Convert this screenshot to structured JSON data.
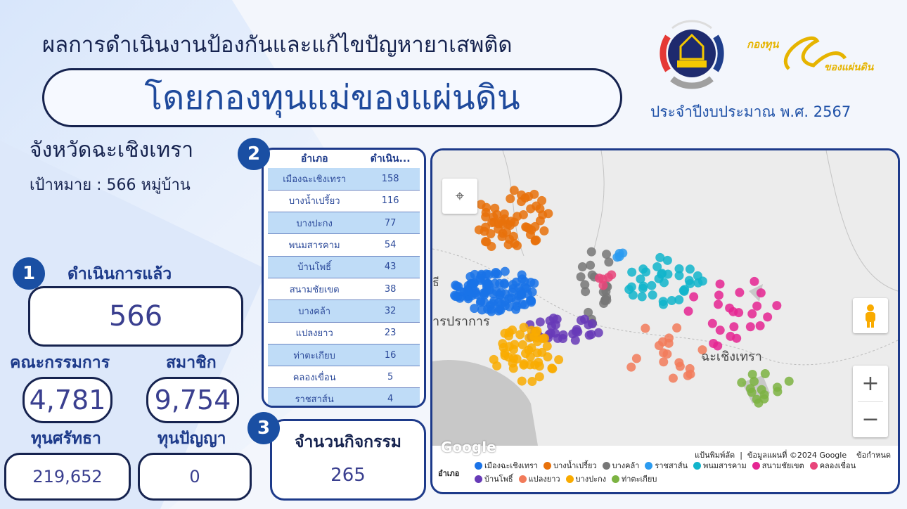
{
  "header": {
    "title": "ผลการดำเนินงานป้องกันและแก้ไขปัญหายาเสพติด",
    "subtitle": "โดยกองทุนแม่ของแผ่นดิน",
    "fiscal_year": "ประจำปีงบประมาณ พ.ศ. 2567",
    "logo2_text": "กองทุนแม่ของแผ่นดิน"
  },
  "province": {
    "name": "จังหวัดฉะเชิงเทรา",
    "target": "เป้าหมาย : 566 หมู่บ้าน"
  },
  "section1": {
    "badge": "1",
    "label": "ดำเนินการแล้ว",
    "value": "566"
  },
  "stats": {
    "committee_label": "คณะกรรมการ",
    "committee_value": "4,781",
    "member_label": "สมาชิก",
    "member_value": "9,754",
    "fund_faith_label": "ทุนศรัทธา",
    "fund_faith_value": "219,652",
    "fund_wisdom_label": "ทุนปัญญา",
    "fund_wisdom_value": "0"
  },
  "section2": {
    "badge": "2",
    "columns": [
      "อำเภอ",
      "ดำเนิน..."
    ],
    "rows": [
      [
        "เมืองฉะเชิงเทรา",
        "158"
      ],
      [
        "บางน้ำเปรี้ยว",
        "116"
      ],
      [
        "บางปะกง",
        "77"
      ],
      [
        "พนมสารคาม",
        "54"
      ],
      [
        "บ้านโพธิ์",
        "43"
      ],
      [
        "สนามชัยเขต",
        "38"
      ],
      [
        "บางคล้า",
        "32"
      ],
      [
        "แปลงยาว",
        "23"
      ],
      [
        "ท่าตะเกียบ",
        "16"
      ],
      [
        "คลองเขื่อน",
        "5"
      ],
      [
        "ราชสาส์น",
        "4"
      ]
    ]
  },
  "section3": {
    "badge": "3",
    "label": "จำนวนกิจกรรม",
    "value": "265"
  },
  "map": {
    "place_labels": [
      "ารปราการ",
      "ฉะเชิงเทรา",
      "ธี"
    ],
    "google": "Google",
    "shortcuts": "แป้นพิมพ์ลัด",
    "copyright": "ข้อมูลแผนที่ ©2024 Google",
    "terms": "ข้อกำหนด",
    "zoom_in": "+",
    "zoom_out": "−",
    "legend_title": "อำเภอ",
    "legend": [
      {
        "name": "เมืองฉะเชิงเทรา",
        "color": "#1a73e8"
      },
      {
        "name": "บางน้ำเปรี้ยว",
        "color": "#e8710a"
      },
      {
        "name": "บางคล้า",
        "color": "#777777"
      },
      {
        "name": "ราชสาส์น",
        "color": "#2b9bf0"
      },
      {
        "name": "พนมสารคาม",
        "color": "#12b5cb"
      },
      {
        "name": "สนามชัยเขต",
        "color": "#e52592"
      },
      {
        "name": "คลองเขื่อน",
        "color": "#e8457a"
      },
      {
        "name": "บ้านโพธิ์",
        "color": "#673ab7"
      },
      {
        "name": "แปลงยาว",
        "color": "#f27b5a"
      },
      {
        "name": "บางปะกง",
        "color": "#f9ab00"
      },
      {
        "name": "ท่าตะเกียบ",
        "color": "#7cb342"
      }
    ]
  }
}
